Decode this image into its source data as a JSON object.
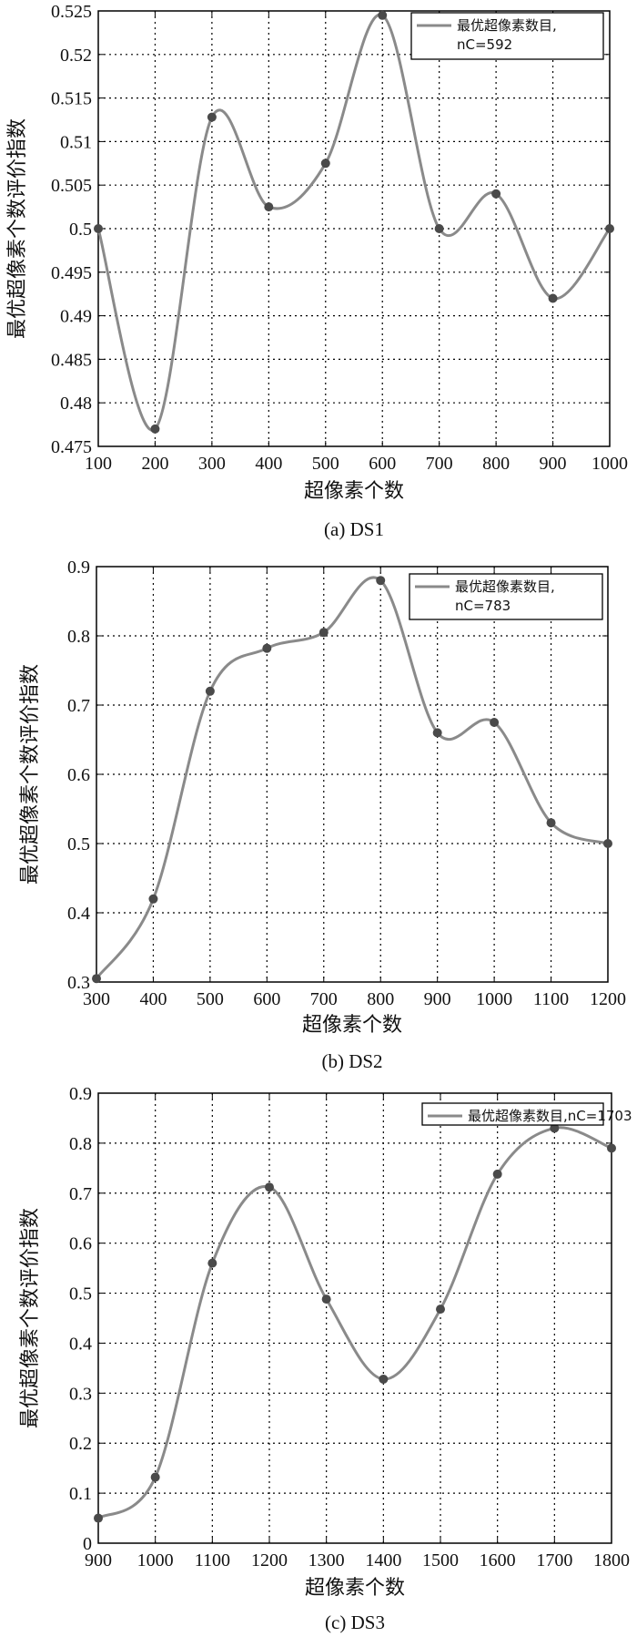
{
  "style": {
    "line_color": "#8a8a8a",
    "marker_color": "#4a4a4a",
    "grid_color": "#000000",
    "axes_color": "#000000"
  },
  "chart_data": [
    {
      "type": "line",
      "caption": "(a) DS1",
      "xlabel": "超像素个数",
      "ylabel": "最优超像素个数评价指数",
      "legend": [
        "最优超像素数目,",
        "nC=592"
      ],
      "legend_position": "top-right",
      "grid": true,
      "xlim": [
        100,
        1000
      ],
      "ylim": [
        0.475,
        0.525
      ],
      "xticks": [
        100,
        200,
        300,
        400,
        500,
        600,
        700,
        800,
        900,
        1000
      ],
      "yticks": [
        0.475,
        0.48,
        0.485,
        0.49,
        0.495,
        0.5,
        0.505,
        0.51,
        0.515,
        0.52,
        0.525
      ],
      "ytick_labels": [
        "0.475",
        "0.48",
        "0.485",
        "0.49",
        "0.495",
        "0.5",
        "0.505",
        "0.51",
        "0.515",
        "0.52",
        "0.525"
      ],
      "x": [
        100,
        200,
        300,
        400,
        500,
        600,
        700,
        800,
        900,
        1000
      ],
      "y": [
        0.5,
        0.477,
        0.5128,
        0.5025,
        0.5075,
        0.5245,
        0.5,
        0.504,
        0.492,
        0.5
      ]
    },
    {
      "type": "line",
      "caption": "(b) DS2",
      "xlabel": "超像素个数",
      "ylabel": "最优超像素个数评价指数",
      "legend": [
        "最优超像素数目,",
        "nC=783"
      ],
      "legend_position": "top-right",
      "grid": true,
      "xlim": [
        300,
        1200
      ],
      "ylim": [
        0.3,
        0.9
      ],
      "xticks": [
        300,
        400,
        500,
        600,
        700,
        800,
        900,
        1000,
        1100,
        1200
      ],
      "yticks": [
        0.3,
        0.4,
        0.5,
        0.6,
        0.7,
        0.8,
        0.9
      ],
      "ytick_labels": [
        "0.3",
        "0.4",
        "0.5",
        "0.6",
        "0.7",
        "0.8",
        "0.9"
      ],
      "x": [
        300,
        400,
        500,
        600,
        700,
        800,
        900,
        1000,
        1100,
        1200
      ],
      "y": [
        0.305,
        0.42,
        0.72,
        0.782,
        0.805,
        0.88,
        0.66,
        0.675,
        0.53,
        0.5
      ]
    },
    {
      "type": "line",
      "caption": "(c) DS3",
      "xlabel": "超像素个数",
      "ylabel": "最优超像素个数评价指数",
      "legend": [
        "最优超像素数目,nC=1703"
      ],
      "legend_position": "top-right",
      "grid": true,
      "xlim": [
        900,
        1800
      ],
      "ylim": [
        0,
        0.9
      ],
      "xticks": [
        900,
        1000,
        1100,
        1200,
        1300,
        1400,
        1500,
        1600,
        1700,
        1800
      ],
      "yticks": [
        0,
        0.1,
        0.2,
        0.3,
        0.4,
        0.5,
        0.6,
        0.7,
        0.8,
        0.9
      ],
      "ytick_labels": [
        "0",
        "0.1",
        "0.2",
        "0.3",
        "0.4",
        "0.5",
        "0.6",
        "0.7",
        "0.8",
        "0.9"
      ],
      "x": [
        900,
        1000,
        1100,
        1200,
        1300,
        1400,
        1500,
        1600,
        1700,
        1800
      ],
      "y": [
        0.05,
        0.132,
        0.56,
        0.712,
        0.488,
        0.328,
        0.468,
        0.738,
        0.83,
        0.79
      ]
    }
  ]
}
